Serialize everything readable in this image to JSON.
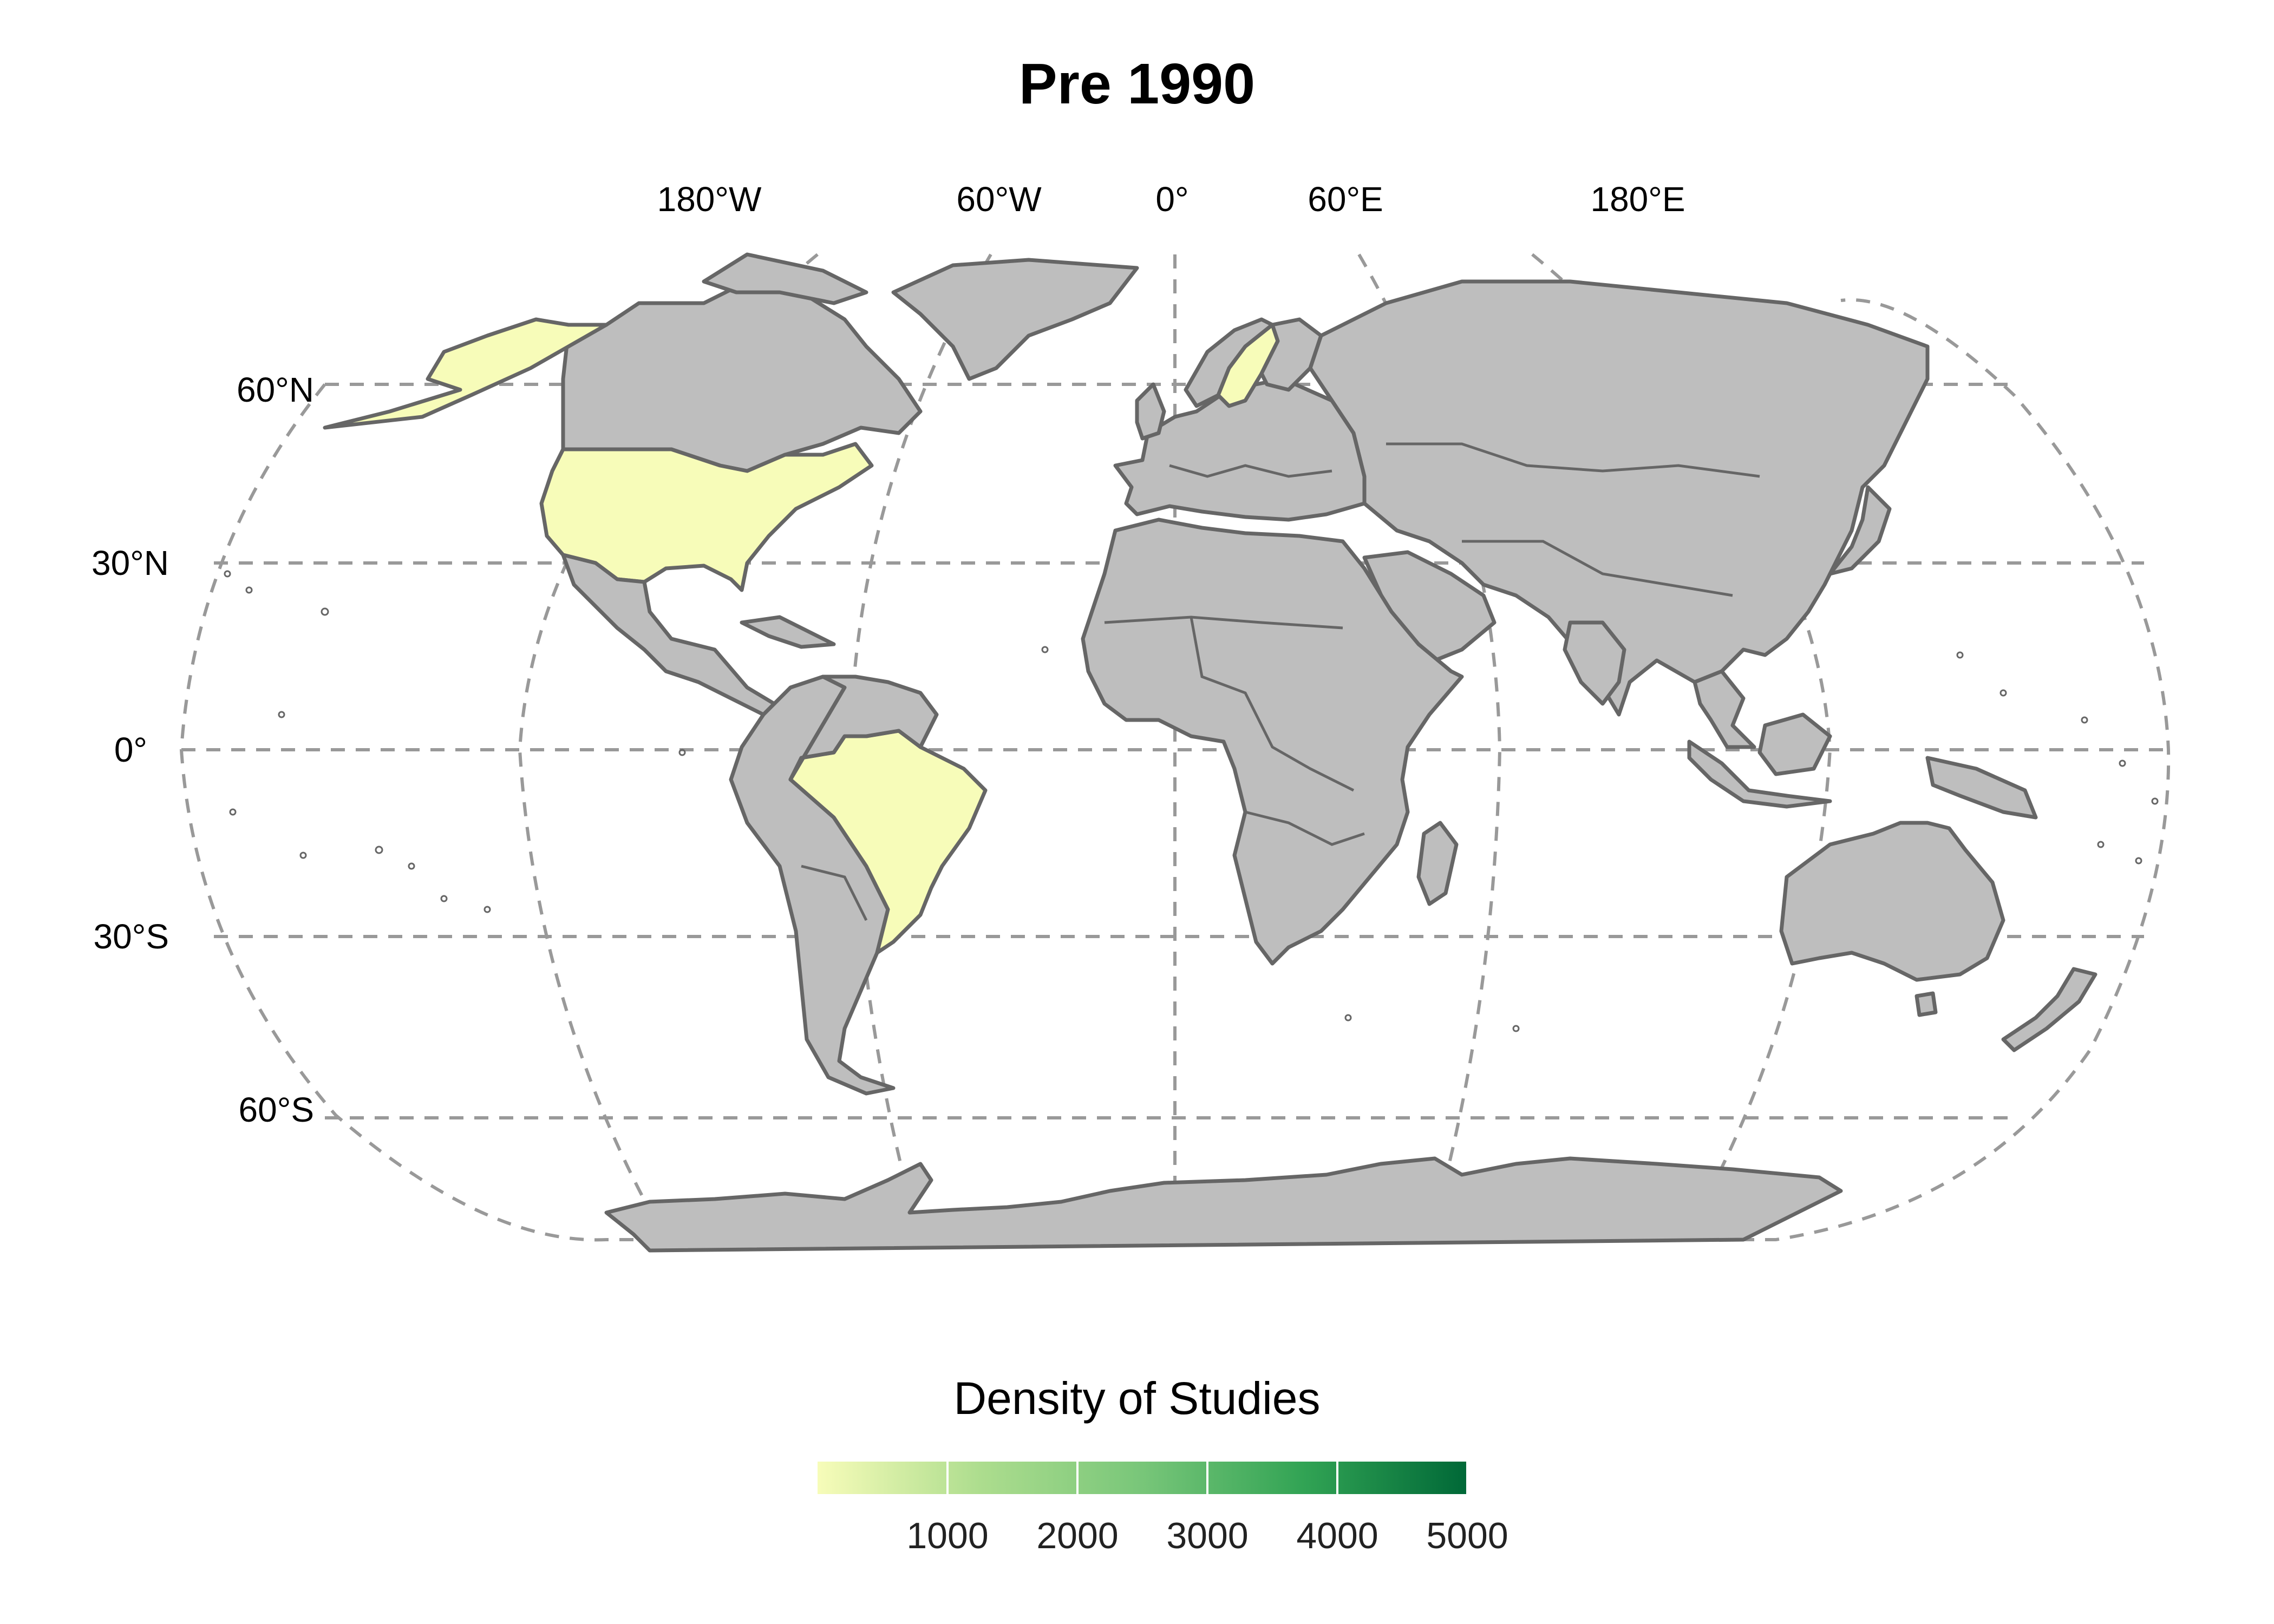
{
  "map": {
    "title": "Pre 1990",
    "projection": "Robinson",
    "graticule_style": "dashed",
    "longitude_labels": [
      {
        "label": "180°W",
        "lon": -180
      },
      {
        "label": "60°W",
        "lon": -60
      },
      {
        "label": "0°",
        "lon": 0
      },
      {
        "label": "60°E",
        "lon": 60
      },
      {
        "label": "180°E",
        "lon": 180
      }
    ],
    "latitude_labels": [
      {
        "label": "60°N",
        "lat": 60
      },
      {
        "label": "30°N",
        "lat": 30
      },
      {
        "label": "0°",
        "lat": 0
      },
      {
        "label": "30°S",
        "lat": -30
      },
      {
        "label": "60°S",
        "lat": -60
      }
    ],
    "default_land_color": "#bebebe",
    "border_color": "#666666",
    "graticule_color": "#999999",
    "highlighted_countries": [
      {
        "name": "United States",
        "color": "#f7fcb9"
      },
      {
        "name": "Alaska (United States)",
        "color": "#f7fcb9"
      },
      {
        "name": "Brazil",
        "color": "#f7fcb9"
      },
      {
        "name": "Sweden",
        "color": "#f7fcb9"
      }
    ]
  },
  "legend": {
    "title": "Density of Studies",
    "gradient": [
      "#f7fcb9",
      "#addd8e",
      "#78c679",
      "#31a354",
      "#006837"
    ],
    "range": [
      0,
      5000
    ],
    "ticks": [
      {
        "label": "1000",
        "value": 1000
      },
      {
        "label": "2000",
        "value": 2000
      },
      {
        "label": "3000",
        "value": 3000
      },
      {
        "label": "4000",
        "value": 4000
      },
      {
        "label": "5000",
        "value": 5000
      }
    ]
  }
}
